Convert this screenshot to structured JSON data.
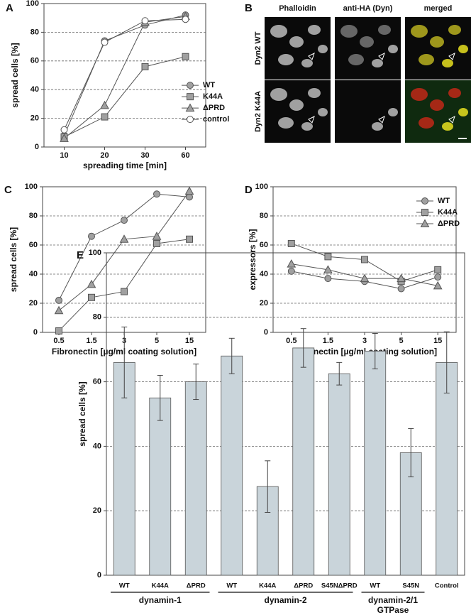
{
  "chart_data": [
    {
      "type": "line",
      "label": "A",
      "xlabel": "spreading time [min]",
      "ylabel": "spread cells [%]",
      "categories": [
        "10",
        "20",
        "30",
        "60"
      ],
      "ylim": [
        0,
        100
      ],
      "yticks": [
        0,
        20,
        40,
        60,
        80,
        100
      ],
      "grid": true,
      "legend": "center right",
      "line_color": "#555555",
      "series": [
        {
          "name": "WT",
          "marker": "circle",
          "color": "#a0a0a0",
          "values": [
            8,
            74,
            85,
            92
          ]
        },
        {
          "name": "K44A",
          "marker": "square",
          "color": "#a0a0a0",
          "values": [
            7,
            21,
            56,
            63
          ]
        },
        {
          "name": "ΔPRD",
          "marker": "triangle",
          "color": "#a0a0a0",
          "values": [
            6,
            29,
            87,
            91
          ]
        },
        {
          "name": "control",
          "marker": "circle",
          "color": "#ffffff",
          "values": [
            12,
            73,
            88,
            89
          ]
        }
      ]
    },
    {
      "type": "line",
      "label": "C",
      "xlabel": "Fibronectin [µg/ml coating solution]",
      "ylabel": "spread cells [%]",
      "categories": [
        "0.5",
        "1.5",
        "3",
        "5",
        "15"
      ],
      "ylim": [
        0,
        100
      ],
      "yticks": [
        0,
        20,
        40,
        60,
        80,
        100
      ],
      "grid": true,
      "line_color": "#555555",
      "series": [
        {
          "marker": "circle",
          "color": "#a0a0a0",
          "values": [
            22,
            66,
            77,
            95,
            93
          ]
        },
        {
          "marker": "square",
          "color": "#a0a0a0",
          "values": [
            1,
            24,
            28,
            61,
            64
          ]
        },
        {
          "marker": "triangle",
          "color": "#a0a0a0",
          "values": [
            15,
            33,
            64,
            66,
            97
          ]
        }
      ]
    },
    {
      "type": "line",
      "label": "D",
      "xlabel": "Fibronectin [µg/ml coating solution]",
      "ylabel": "expressors [%]",
      "categories": [
        "0.5",
        "1.5",
        "3",
        "5",
        "15"
      ],
      "ylim": [
        0,
        100
      ],
      "yticks": [
        0,
        20,
        40,
        60,
        80,
        100
      ],
      "grid": true,
      "legend": "upper right",
      "line_color": "#555555",
      "series": [
        {
          "name": "WT",
          "marker": "circle",
          "color": "#a0a0a0",
          "values": [
            42,
            37,
            35,
            30,
            38
          ]
        },
        {
          "name": "K44A",
          "marker": "square",
          "color": "#a0a0a0",
          "values": [
            61,
            52,
            50,
            35,
            43
          ]
        },
        {
          "name": "ΔPRD",
          "marker": "triangle",
          "color": "#a0a0a0",
          "values": [
            47,
            43,
            37,
            37,
            32
          ]
        }
      ]
    },
    {
      "type": "bar",
      "label": "E",
      "ylabel": "spread cells [%]",
      "ylim": [
        0,
        100
      ],
      "yticks": [
        0,
        20,
        40,
        60,
        80,
        100
      ],
      "grid": true,
      "color": "#c9d4da",
      "groups": [
        {
          "label": "dynamin-1",
          "categories": [
            "WT",
            "K44A",
            "ΔPRD"
          ],
          "values": [
            66,
            55,
            60
          ],
          "errors": [
            11,
            7,
            5.5
          ]
        },
        {
          "label": "dynamin-2",
          "categories": [
            "WT",
            "K44A",
            "ΔPRD",
            "S45NΔPRD"
          ],
          "values": [
            68,
            27.5,
            70.5,
            62.5
          ],
          "errors": [
            5.5,
            8,
            6,
            3.5
          ]
        },
        {
          "label": [
            "dynamin-2/1",
            "GTPase"
          ],
          "categories": [
            "WT",
            "S45N"
          ],
          "values": [
            69.5,
            38
          ],
          "errors": [
            5.5,
            7.5
          ]
        },
        {
          "label": null,
          "categories": [
            "Control"
          ],
          "values": [
            66
          ],
          "errors": [
            9.5
          ]
        }
      ]
    }
  ],
  "image_panel": {
    "label": "B",
    "columns": [
      "Phalloidin",
      "anti-HA (Dyn)",
      "merged"
    ],
    "rows": [
      "Dyn2 WT",
      "Dyn2 K44A"
    ]
  }
}
